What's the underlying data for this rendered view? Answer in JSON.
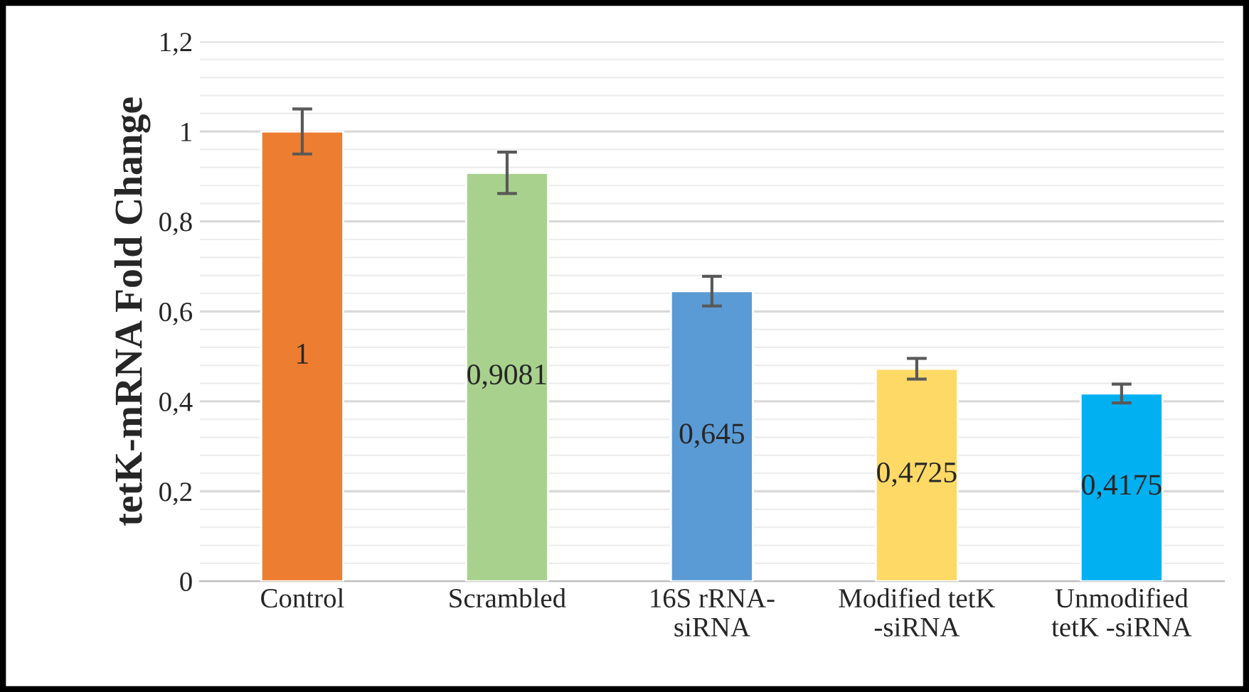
{
  "chart_data": {
    "type": "bar",
    "ylabel": "tetK-mRNA Fold Change",
    "categories": [
      "Control",
      "Scrambled",
      "16S rRNA-\nsiRNA",
      "Modified tetK\n-siRNA",
      "Unmodified\ntetK -siRNA"
    ],
    "values": [
      1,
      0.9081,
      0.645,
      0.4725,
      0.4175
    ],
    "colors": [
      "#ed7d31",
      "#a9d18e",
      "#5b9bd5",
      "#ffd966",
      "#00b0f0"
    ],
    "errors": [
      0.05,
      0.046,
      0.033,
      0.023,
      0.021
    ],
    "value_labels": [
      "1",
      "0,9081",
      "0,645",
      "0,4725",
      "0,4175"
    ],
    "ylim": [
      0,
      1.2
    ],
    "yticks": [
      0,
      {
        "value": 0.2,
        "label": "0,2"
      },
      {
        "value": 0.4,
        "label": "0,4"
      },
      {
        "value": 0.6,
        "label": "0,6"
      },
      {
        "value": 0.8,
        "label": "0,8"
      },
      1,
      {
        "value": 1.2,
        "label": "1,2"
      }
    ],
    "grid": "y",
    "legend": false
  }
}
